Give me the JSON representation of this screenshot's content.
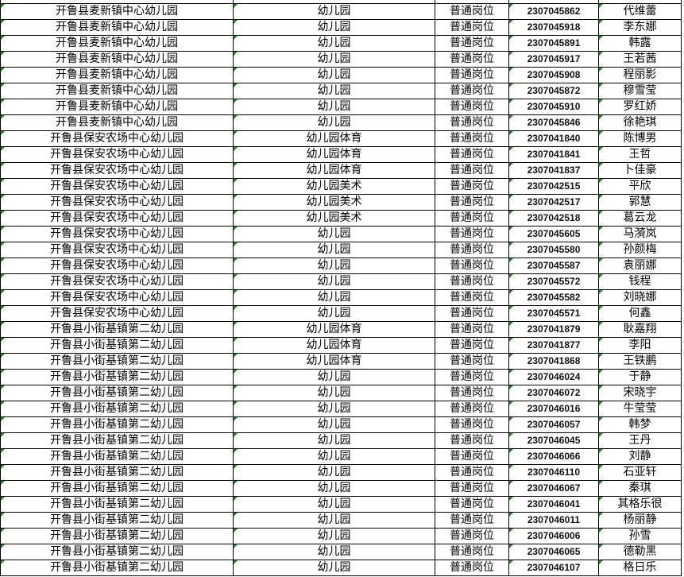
{
  "columns_visible": [
    "school",
    "subject",
    "post_type",
    "exam_id",
    "name"
  ],
  "partial_top_row": {
    "school": "开鲁县麦新镇中心幼儿园",
    "subject": "幼儿园",
    "post_type": "普通岗位",
    "exam_id": "",
    "name": ""
  },
  "rows": [
    {
      "school": "开鲁县麦新镇中心幼儿园",
      "subject": "幼儿园",
      "post_type": "普通岗位",
      "exam_id": "2307045862",
      "name": "代维蕾"
    },
    {
      "school": "开鲁县麦新镇中心幼儿园",
      "subject": "幼儿园",
      "post_type": "普通岗位",
      "exam_id": "2307045918",
      "name": "李东娜"
    },
    {
      "school": "开鲁县麦新镇中心幼儿园",
      "subject": "幼儿园",
      "post_type": "普通岗位",
      "exam_id": "2307045891",
      "name": "韩露"
    },
    {
      "school": "开鲁县麦新镇中心幼儿园",
      "subject": "幼儿园",
      "post_type": "普通岗位",
      "exam_id": "2307045917",
      "name": "王若茜"
    },
    {
      "school": "开鲁县麦新镇中心幼儿园",
      "subject": "幼儿园",
      "post_type": "普通岗位",
      "exam_id": "2307045908",
      "name": "程丽影"
    },
    {
      "school": "开鲁县麦新镇中心幼儿园",
      "subject": "幼儿园",
      "post_type": "普通岗位",
      "exam_id": "2307045872",
      "name": "穆雪莹"
    },
    {
      "school": "开鲁县麦新镇中心幼儿园",
      "subject": "幼儿园",
      "post_type": "普通岗位",
      "exam_id": "2307045910",
      "name": "罗红娇"
    },
    {
      "school": "开鲁县麦新镇中心幼儿园",
      "subject": "幼儿园",
      "post_type": "普通岗位",
      "exam_id": "2307045846",
      "name": "徐艳琪"
    },
    {
      "school": "开鲁县保安农场中心幼儿园",
      "subject": "幼儿园体育",
      "post_type": "普通岗位",
      "exam_id": "2307041840",
      "name": "陈博男"
    },
    {
      "school": "开鲁县保安农场中心幼儿园",
      "subject": "幼儿园体育",
      "post_type": "普通岗位",
      "exam_id": "2307041841",
      "name": "王哲"
    },
    {
      "school": "开鲁县保安农场中心幼儿园",
      "subject": "幼儿园体育",
      "post_type": "普通岗位",
      "exam_id": "2307041837",
      "name": "卜佳豪"
    },
    {
      "school": "开鲁县保安农场中心幼儿园",
      "subject": "幼儿园美术",
      "post_type": "普通岗位",
      "exam_id": "2307042515",
      "name": "平欣"
    },
    {
      "school": "开鲁县保安农场中心幼儿园",
      "subject": "幼儿园美术",
      "post_type": "普通岗位",
      "exam_id": "2307042517",
      "name": "郭慧"
    },
    {
      "school": "开鲁县保安农场中心幼儿园",
      "subject": "幼儿园美术",
      "post_type": "普通岗位",
      "exam_id": "2307042518",
      "name": "葛云龙"
    },
    {
      "school": "开鲁县保安农场中心幼儿园",
      "subject": "幼儿园",
      "post_type": "普通岗位",
      "exam_id": "2307045605",
      "name": "马漪岚"
    },
    {
      "school": "开鲁县保安农场中心幼儿园",
      "subject": "幼儿园",
      "post_type": "普通岗位",
      "exam_id": "2307045580",
      "name": "孙颜梅"
    },
    {
      "school": "开鲁县保安农场中心幼儿园",
      "subject": "幼儿园",
      "post_type": "普通岗位",
      "exam_id": "2307045587",
      "name": "袁丽娜"
    },
    {
      "school": "开鲁县保安农场中心幼儿园",
      "subject": "幼儿园",
      "post_type": "普通岗位",
      "exam_id": "2307045572",
      "name": "钱程"
    },
    {
      "school": "开鲁县保安农场中心幼儿园",
      "subject": "幼儿园",
      "post_type": "普通岗位",
      "exam_id": "2307045582",
      "name": "刘晓娜"
    },
    {
      "school": "开鲁县保安农场中心幼儿园",
      "subject": "幼儿园",
      "post_type": "普通岗位",
      "exam_id": "2307045571",
      "name": "何鑫"
    },
    {
      "school": "开鲁县小街基镇第二幼儿园",
      "subject": "幼儿园体育",
      "post_type": "普通岗位",
      "exam_id": "2307041879",
      "name": "耿嘉翔"
    },
    {
      "school": "开鲁县小街基镇第二幼儿园",
      "subject": "幼儿园体育",
      "post_type": "普通岗位",
      "exam_id": "2307041877",
      "name": "李阳"
    },
    {
      "school": "开鲁县小街基镇第二幼儿园",
      "subject": "幼儿园体育",
      "post_type": "普通岗位",
      "exam_id": "2307041868",
      "name": "王铁鹏"
    },
    {
      "school": "开鲁县小街基镇第二幼儿园",
      "subject": "幼儿园",
      "post_type": "普通岗位",
      "exam_id": "2307046024",
      "name": "于静"
    },
    {
      "school": "开鲁县小街基镇第二幼儿园",
      "subject": "幼儿园",
      "post_type": "普通岗位",
      "exam_id": "2307046072",
      "name": "宋晓宇"
    },
    {
      "school": "开鲁县小街基镇第二幼儿园",
      "subject": "幼儿园",
      "post_type": "普通岗位",
      "exam_id": "2307046016",
      "name": "牛莹莹"
    },
    {
      "school": "开鲁县小街基镇第二幼儿园",
      "subject": "幼儿园",
      "post_type": "普通岗位",
      "exam_id": "2307046057",
      "name": "韩梦"
    },
    {
      "school": "开鲁县小街基镇第二幼儿园",
      "subject": "幼儿园",
      "post_type": "普通岗位",
      "exam_id": "2307046045",
      "name": "王丹"
    },
    {
      "school": "开鲁县小街基镇第二幼儿园",
      "subject": "幼儿园",
      "post_type": "普通岗位",
      "exam_id": "2307046066",
      "name": "刘静"
    },
    {
      "school": "开鲁县小街基镇第二幼儿园",
      "subject": "幼儿园",
      "post_type": "普通岗位",
      "exam_id": "2307046110",
      "name": "石亚轩"
    },
    {
      "school": "开鲁县小街基镇第二幼儿园",
      "subject": "幼儿园",
      "post_type": "普通岗位",
      "exam_id": "2307046067",
      "name": "秦琪"
    },
    {
      "school": "开鲁县小街基镇第二幼儿园",
      "subject": "幼儿园",
      "post_type": "普通岗位",
      "exam_id": "2307046041",
      "name": "其格乐很"
    },
    {
      "school": "开鲁县小街基镇第二幼儿园",
      "subject": "幼儿园",
      "post_type": "普通岗位",
      "exam_id": "2307046011",
      "name": "杨丽静"
    },
    {
      "school": "开鲁县小街基镇第二幼儿园",
      "subject": "幼儿园",
      "post_type": "普通岗位",
      "exam_id": "2307046006",
      "name": "孙雪"
    },
    {
      "school": "开鲁县小街基镇第二幼儿园",
      "subject": "幼儿园",
      "post_type": "普通岗位",
      "exam_id": "2307046065",
      "name": "德勒黑"
    },
    {
      "school": "开鲁县小街基镇第二幼儿园",
      "subject": "幼儿园",
      "post_type": "普通岗位",
      "exam_id": "2307046107",
      "name": "格日乐"
    }
  ]
}
